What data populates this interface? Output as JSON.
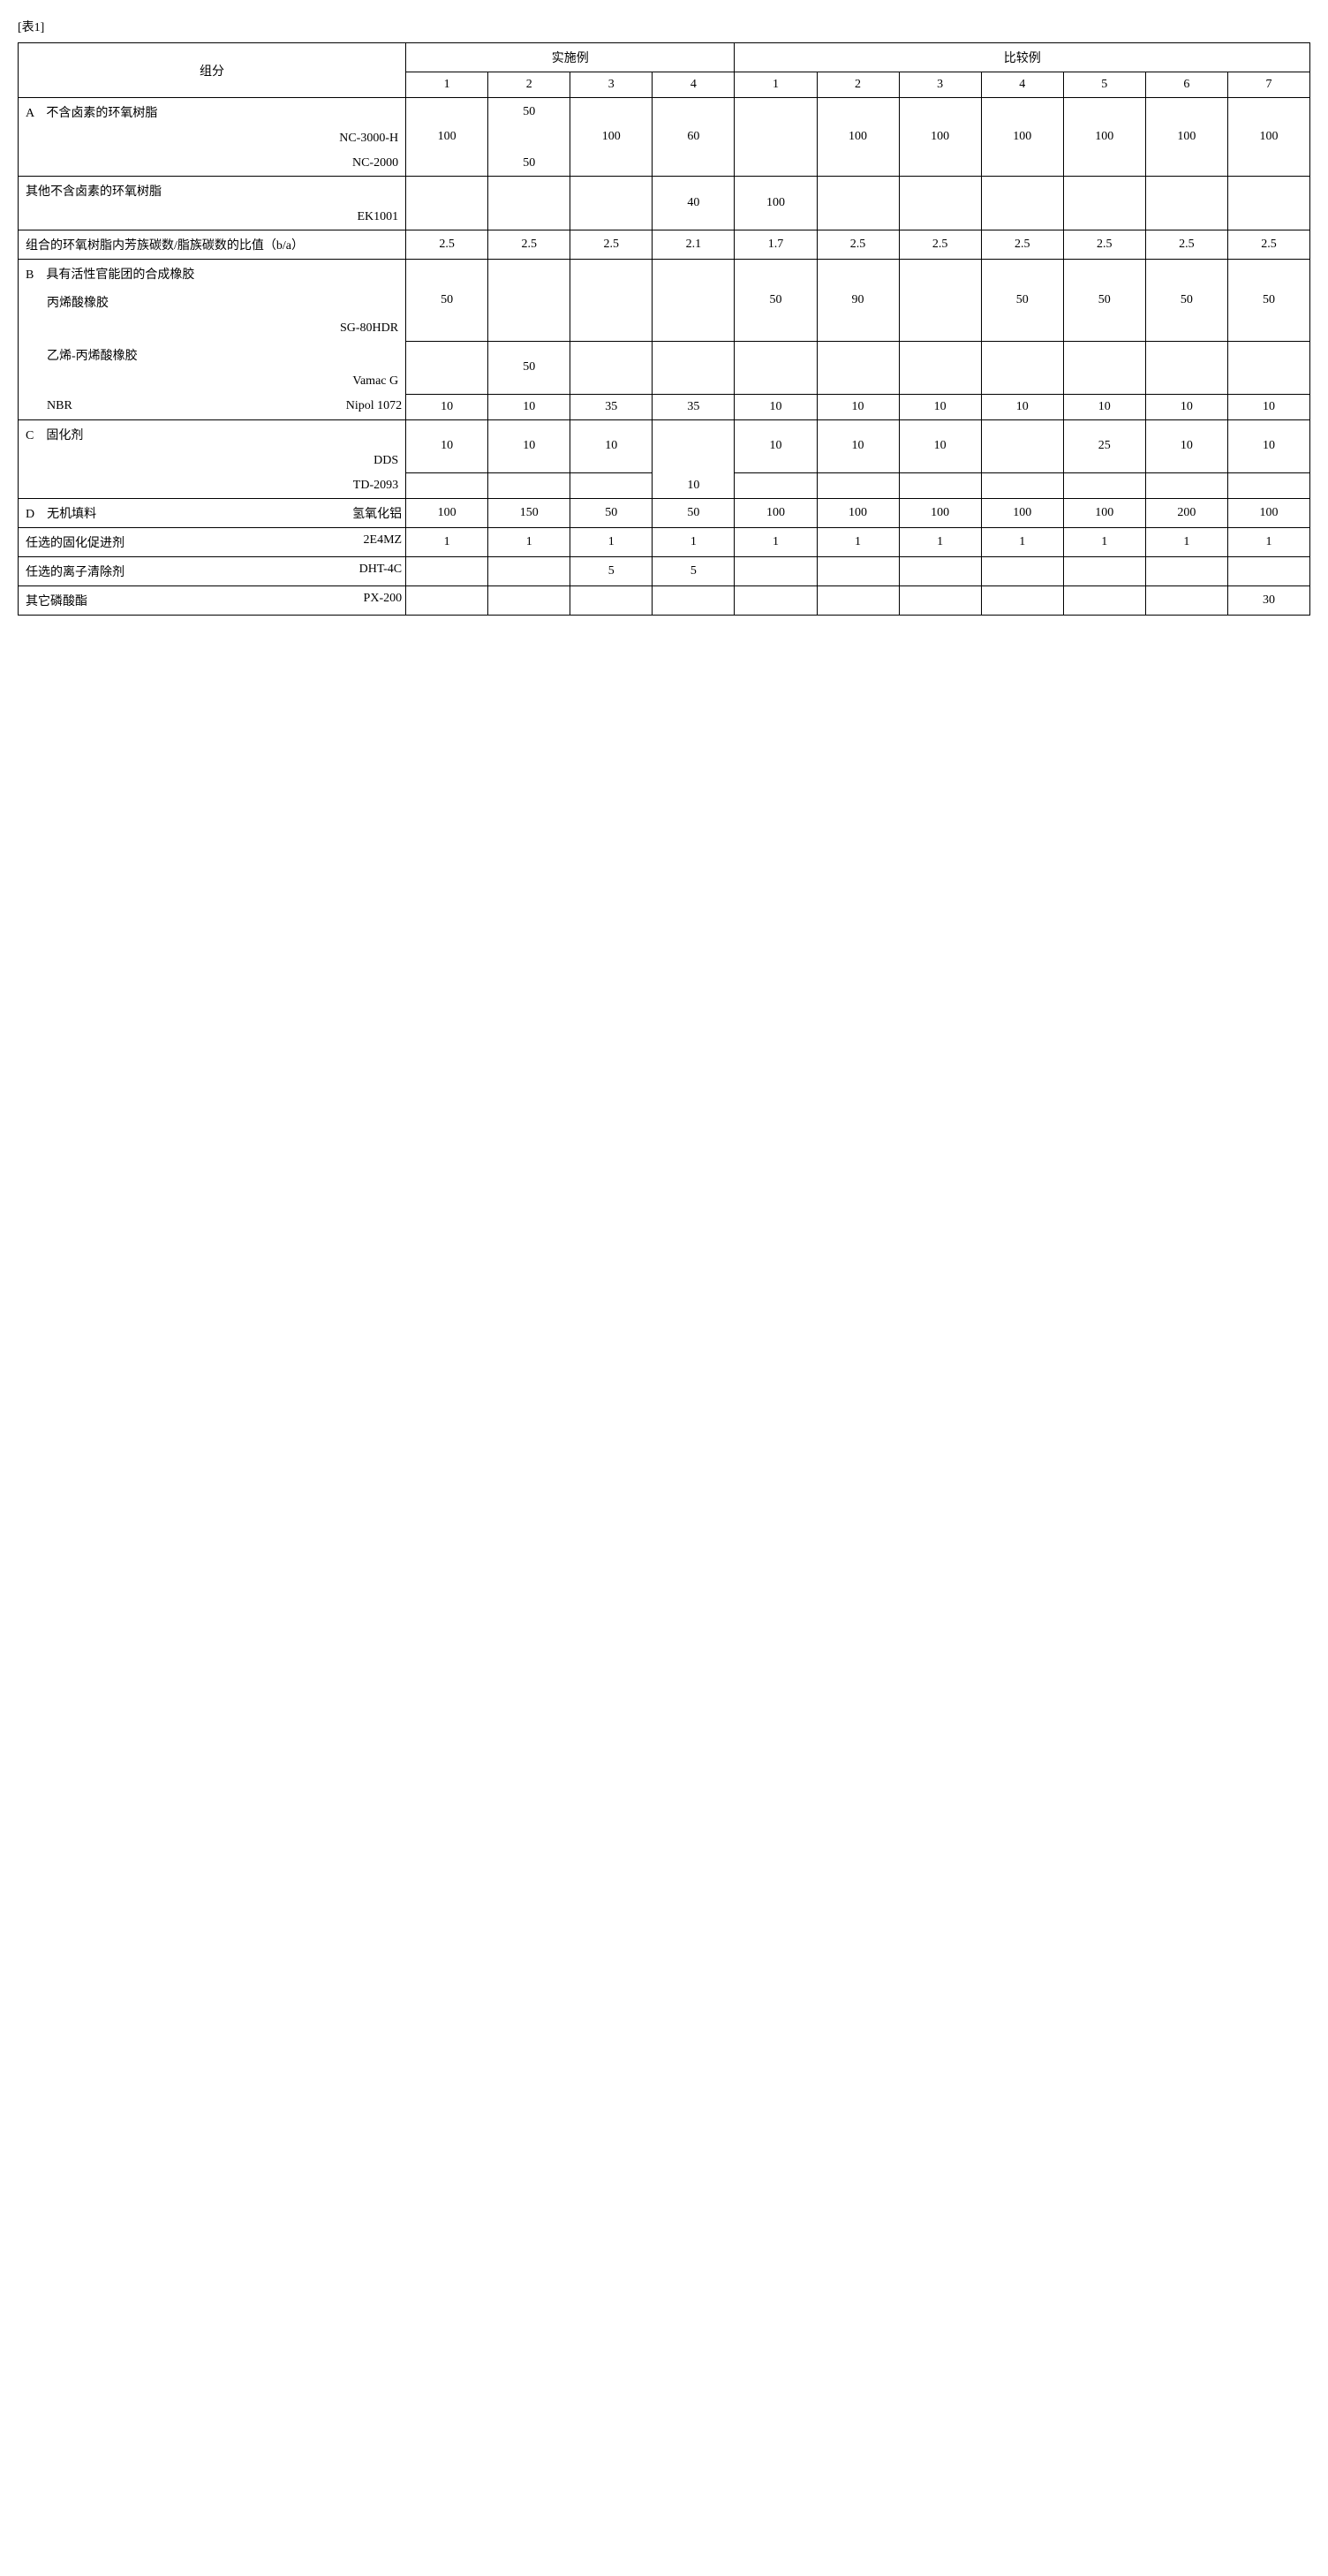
{
  "caption": "[表1]",
  "header": {
    "component": "组分",
    "group_example": "实施例",
    "group_compare": "比较例",
    "ex_cols": [
      "1",
      "2",
      "3",
      "4"
    ],
    "cp_cols": [
      "1",
      "2",
      "3",
      "4",
      "5",
      "6",
      "7"
    ]
  },
  "rows": {
    "A_title": "A　不含卤素的环氧树脂",
    "A_nc3000h": {
      "label": "NC-3000-H",
      "v": [
        "100",
        "50",
        "100",
        "60",
        "",
        "100",
        "100",
        "100",
        "100",
        "100",
        "100"
      ]
    },
    "A_nc2000": {
      "label": "NC-2000",
      "v": [
        "",
        "50",
        "",
        "",
        "",
        "",
        "",
        "",
        "",
        "",
        ""
      ]
    },
    "other_epoxy_title": "其他不含卤素的环氧树脂",
    "other_ek1001": {
      "label": "EK1001",
      "v": [
        "",
        "",
        "",
        "40",
        "100",
        "",
        "",
        "",
        "",
        "",
        ""
      ]
    },
    "ratio": {
      "label": "组合的环氧树脂内芳族碳数/脂族碳数的比值（b/a）",
      "v": [
        "2.5",
        "2.5",
        "2.5",
        "2.1",
        "1.7",
        "2.5",
        "2.5",
        "2.5",
        "2.5",
        "2.5",
        "2.5"
      ]
    },
    "B_title": "B　具有活性官能团的合成橡胶",
    "B_acryl_title": "丙烯酸橡胶",
    "B_sg80": {
      "label": "SG-80HDR",
      "v": [
        "50",
        "",
        "",
        "",
        "50",
        "90",
        "",
        "50",
        "50",
        "50",
        "50"
      ]
    },
    "B_ea_title": "乙烯-丙烯酸橡胶",
    "B_vamac": {
      "label": "Vamac G",
      "v": [
        "",
        "50",
        "",
        "",
        "",
        "",
        "",
        "",
        "",
        "",
        ""
      ]
    },
    "B_nbr": {
      "label": "NBR",
      "sub": "Nipol 1072",
      "v": [
        "10",
        "10",
        "35",
        "35",
        "10",
        "10",
        "10",
        "10",
        "10",
        "10",
        "10"
      ]
    },
    "C_title": "C　固化剂",
    "C_dds": {
      "label": "DDS",
      "v": [
        "10",
        "10",
        "10",
        "",
        "10",
        "10",
        "10",
        "",
        "25",
        "10",
        "10"
      ]
    },
    "C_td2093": {
      "label": "TD-2093",
      "v": [
        "",
        "",
        "",
        "10",
        "",
        "",
        "",
        "",
        "",
        "",
        ""
      ]
    },
    "D_filler": {
      "label": "D　无机填料",
      "sub": "氢氧化铝",
      "v": [
        "100",
        "150",
        "50",
        "50",
        "100",
        "100",
        "100",
        "100",
        "100",
        "200",
        "100"
      ]
    },
    "opt_accel": {
      "label": "任选的固化促进剂",
      "sub": "2E4MZ",
      "v": [
        "1",
        "1",
        "1",
        "1",
        "1",
        "1",
        "1",
        "1",
        "1",
        "1",
        "1"
      ]
    },
    "opt_scav": {
      "label": "任选的离子清除剂",
      "sub": "DHT-4C",
      "v": [
        "",
        "",
        "5",
        "5",
        "",
        "",
        "",
        "",
        "",
        "",
        ""
      ]
    },
    "other_phos": {
      "label": "其它磷酸酯",
      "sub": "PX-200",
      "v": [
        "",
        "",
        "",
        "",
        "",
        "",
        "",
        "",
        "",
        "",
        "30"
      ]
    }
  }
}
